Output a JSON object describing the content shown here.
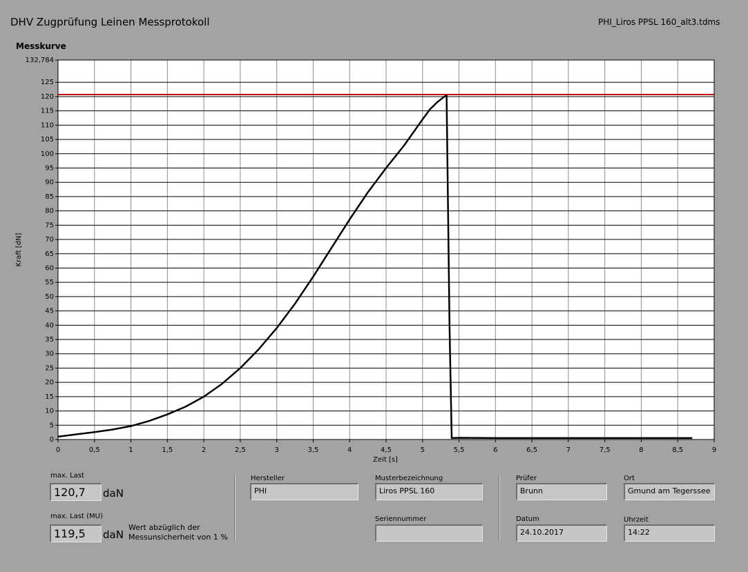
{
  "header": {
    "title": "DHV Zugprüfung Leinen Messprotokoll",
    "file": "PHI_Liros PPSL 160_alt3.tdms"
  },
  "chart_data": {
    "type": "line",
    "title": "Messkurve",
    "xlabel": "Zeit [s]",
    "ylabel": "Kraft [dN]",
    "x": [
      0,
      0.25,
      0.5,
      0.75,
      1,
      1.25,
      1.5,
      1.75,
      2,
      2.25,
      2.5,
      2.75,
      3,
      3.25,
      3.5,
      3.75,
      4,
      4.25,
      4.5,
      4.75,
      5,
      5.1,
      5.2,
      5.3,
      5.33,
      5.37,
      5.4,
      5.5,
      6,
      7,
      8,
      8.7
    ],
    "series": [
      {
        "color": "#000000",
        "values": [
          1,
          1.8,
          2.6,
          3.5,
          4.7,
          6.5,
          8.8,
          11.5,
          15,
          19.5,
          25,
          31.5,
          39,
          47.5,
          57,
          67,
          77,
          86.5,
          95,
          103,
          112,
          115.5,
          118,
          120,
          120.3,
          40,
          0.5,
          0.6,
          0.5,
          0.5,
          0.5,
          0.5
        ]
      }
    ],
    "limit_line": {
      "value": 120.7,
      "color": "#c00000"
    },
    "xlim": [
      0,
      9
    ],
    "xticks": [
      0,
      {
        "value": 0.5,
        "label": "0,5"
      },
      1,
      {
        "value": 1.5,
        "label": "1,5"
      },
      2,
      {
        "value": 2.5,
        "label": "2,5"
      },
      3,
      {
        "value": 3.5,
        "label": "3,5"
      },
      4,
      {
        "value": 4.5,
        "label": "4,5"
      },
      5,
      {
        "value": 5.5,
        "label": "5,5"
      },
      6,
      {
        "value": 6.5,
        "label": "6,5"
      },
      7,
      {
        "value": 7.5,
        "label": "7,5"
      },
      8,
      {
        "value": 8.5,
        "label": "8,5"
      },
      9
    ],
    "ylim": [
      0,
      132.784
    ],
    "yticks": [
      0,
      5,
      10,
      15,
      20,
      25,
      30,
      35,
      40,
      45,
      50,
      55,
      60,
      65,
      70,
      75,
      80,
      85,
      90,
      95,
      100,
      105,
      110,
      115,
      120,
      125,
      {
        "value": 132.784,
        "label": "132,784"
      }
    ],
    "grid": true
  },
  "results": {
    "max_label": "max. Last",
    "max_value": "120,7",
    "unit": "daN",
    "mu_label": "max. Last (MU)",
    "mu_value": "119,5",
    "mu_unit": "daN",
    "note": [
      "Wert abzüglich der",
      "Messunsicherheit von 1 %"
    ]
  },
  "fields": {
    "hersteller_label": "Hersteller",
    "hersteller": "PHI",
    "muster_label": "Musterbezeichnung",
    "muster": "Liros PPSL 160",
    "serien_label": "Seriennummer",
    "pruefer_label": "Prüfer",
    "pruefer": "Brunn",
    "ort_label": "Ort",
    "ort": "Gmund am Tegerssee",
    "datum_label": "Datum",
    "datum": "24.10.2017",
    "uhrzeit_label": "Uhrzeit",
    "uhrzeit": "14:22"
  }
}
